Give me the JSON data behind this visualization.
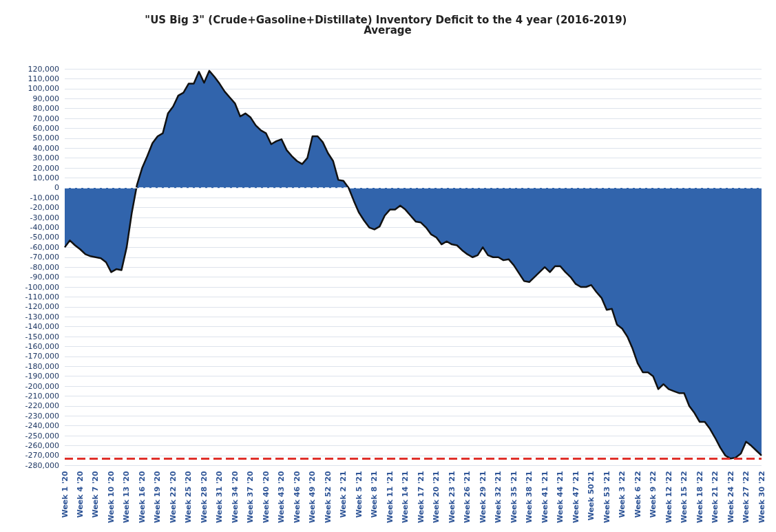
{
  "chart_data": {
    "type": "area",
    "title": "\"US Big 3\" (Crude+Gasoline+Distillate) Inventory Deficit to the 4 year (2016-2019) Average",
    "categories": [
      "Week 1 '20",
      null,
      null,
      "Week 4 '20",
      null,
      null,
      "Week 7 '20",
      null,
      null,
      "Week 10 '20",
      null,
      null,
      "Week 13 '20",
      null,
      null,
      "Week 16 '20",
      null,
      null,
      "Week 19 '20",
      null,
      null,
      "Week 22 '20",
      null,
      null,
      "Week 25 '20",
      null,
      null,
      "Week 28 '20",
      null,
      null,
      "Week 31 '20",
      null,
      null,
      "Week 34 '20",
      null,
      null,
      "Week 37 '20",
      null,
      null,
      "Week 40 '20",
      null,
      null,
      "Week 43 '20",
      null,
      null,
      "Week 46 '20",
      null,
      null,
      "Week 49 '20",
      null,
      null,
      "Week 52 '20",
      null,
      null,
      "Week 2 '21",
      null,
      null,
      "Week 5 '21",
      null,
      null,
      "Week 8 '21",
      null,
      null,
      "Week 11 '21",
      null,
      null,
      "Week 14 '21",
      null,
      null,
      "Week 17 '21",
      null,
      null,
      "Week 20 '21",
      null,
      null,
      "Week 23 '21",
      null,
      null,
      "Week 26 '21",
      null,
      null,
      "Week 29 '21",
      null,
      null,
      "Week 32 '21",
      null,
      null,
      "Week 35 '21",
      null,
      null,
      "Week 38 '21",
      null,
      null,
      "Week 41 '21",
      null,
      null,
      "Week 44 '21",
      null,
      null,
      "Week 47 '21",
      null,
      null,
      "Week 50'21",
      null,
      null,
      "Week 53 '21",
      null,
      null,
      "Week 3 '22",
      null,
      null,
      "Week 6 '22",
      null,
      null,
      "Week 9 '22",
      null,
      null,
      "Week 12 '22",
      null,
      null,
      "Week 15 '22",
      null,
      null,
      "Week 18 '22",
      null,
      null,
      "Week 21 '22",
      null,
      null,
      "Week 24 '22",
      null,
      null,
      "Week 27 '22",
      null,
      null,
      "Week 30 '22"
    ],
    "series": [
      {
        "color": "#3164ac",
        "values": [
          -60000,
          -53000,
          -58000,
          -62000,
          -67000,
          -69000,
          -70000,
          -71000,
          -75000,
          -85000,
          -82000,
          -83000,
          -60000,
          -25000,
          3000,
          20000,
          32000,
          45000,
          52000,
          55000,
          75000,
          82000,
          93000,
          96000,
          105000,
          105000,
          117000,
          106000,
          118000,
          112000,
          105000,
          97000,
          91000,
          85000,
          72000,
          75000,
          71000,
          63000,
          58000,
          55000,
          44000,
          47000,
          49000,
          38000,
          32000,
          27000,
          24000,
          30000,
          52000,
          52000,
          46000,
          35000,
          27000,
          8000,
          7000,
          0,
          -13000,
          -25000,
          -33000,
          -40000,
          -42000,
          -39000,
          -28000,
          -22000,
          -22000,
          -18000,
          -22000,
          -28000,
          -34000,
          -35000,
          -40000,
          -47000,
          -50000,
          -57000,
          -54000,
          -57000,
          -58000,
          -63000,
          -67000,
          -70000,
          -68000,
          -60000,
          -68000,
          -70000,
          -70000,
          -73000,
          -72000,
          -78000,
          -86000,
          -94000,
          -95000,
          -90000,
          -85000,
          -80000,
          -85000,
          -79000,
          -79000,
          -85000,
          -90000,
          -97000,
          -100000,
          -100000,
          -98000,
          -105000,
          -111000,
          -123000,
          -122000,
          -138000,
          -142000,
          -150000,
          -162000,
          -177000,
          -186000,
          -186000,
          -190000,
          -203000,
          -198000,
          -203000,
          -205000,
          -207000,
          -207000,
          -220000,
          -227000,
          -236000,
          -236000,
          -243000,
          -252000,
          -262000,
          -270000,
          -273000,
          -272000,
          -268000,
          -256000,
          -260000,
          -265000,
          -270000
        ]
      }
    ],
    "ylim": [
      -280000,
      120000
    ],
    "yticks": [
      {
        "value": -280000,
        "label": "-280,000"
      },
      {
        "value": -270000,
        "label": "-270,000"
      },
      {
        "value": -260000,
        "label": "-260,000"
      },
      {
        "value": -250000,
        "label": "-250,000"
      },
      {
        "value": -240000,
        "label": "-240,000"
      },
      {
        "value": -230000,
        "label": "-230,000"
      },
      {
        "value": -220000,
        "label": "-220,000"
      },
      {
        "value": -210000,
        "label": "-210,000"
      },
      {
        "value": -200000,
        "label": "-200,000"
      },
      {
        "value": -190000,
        "label": "-190,000"
      },
      {
        "value": -180000,
        "label": "-180,000"
      },
      {
        "value": -170000,
        "label": "-170,000"
      },
      {
        "value": -160000,
        "label": "-160,000"
      },
      {
        "value": -150000,
        "label": "-150,000"
      },
      {
        "value": -140000,
        "label": "-140,000"
      },
      {
        "value": -130000,
        "label": "-130,000"
      },
      {
        "value": -120000,
        "label": "-120,000"
      },
      {
        "value": -110000,
        "label": "-110,000"
      },
      {
        "value": -100000,
        "label": "-100,000"
      },
      {
        "value": -90000,
        "label": "-90,000"
      },
      {
        "value": -80000,
        "label": "-80,000"
      },
      {
        "value": -70000,
        "label": "-70,000"
      },
      {
        "value": -60000,
        "label": "-60,000"
      },
      {
        "value": -50000,
        "label": "-50,000"
      },
      {
        "value": -40000,
        "label": "-40,000"
      },
      {
        "value": -30000,
        "label": "-30,000"
      },
      {
        "value": -20000,
        "label": "-20,000"
      },
      {
        "value": -10000,
        "label": "-10,000"
      },
      0,
      {
        "value": 10000,
        "label": "10,000"
      },
      {
        "value": 20000,
        "label": "20,000"
      },
      {
        "value": 30000,
        "label": "30,000"
      },
      {
        "value": 40000,
        "label": "40,000"
      },
      {
        "value": 50000,
        "label": "50,000"
      },
      {
        "value": 60000,
        "label": "60,000"
      },
      {
        "value": 70000,
        "label": "70,000"
      },
      {
        "value": 80000,
        "label": "80,000"
      },
      {
        "value": 90000,
        "label": "90,000"
      },
      {
        "value": 100000,
        "label": "100,000"
      },
      {
        "value": 110000,
        "label": "110,000"
      },
      {
        "value": 120000,
        "label": "120,000"
      }
    ],
    "grid": "y",
    "ref_lines": [
      {
        "axis": "y",
        "value": 0,
        "color": "#ffffff",
        "line_style": "dashed"
      },
      {
        "axis": "y",
        "value": -273000,
        "color": "#e0302a",
        "line_style": "dashed"
      }
    ]
  }
}
